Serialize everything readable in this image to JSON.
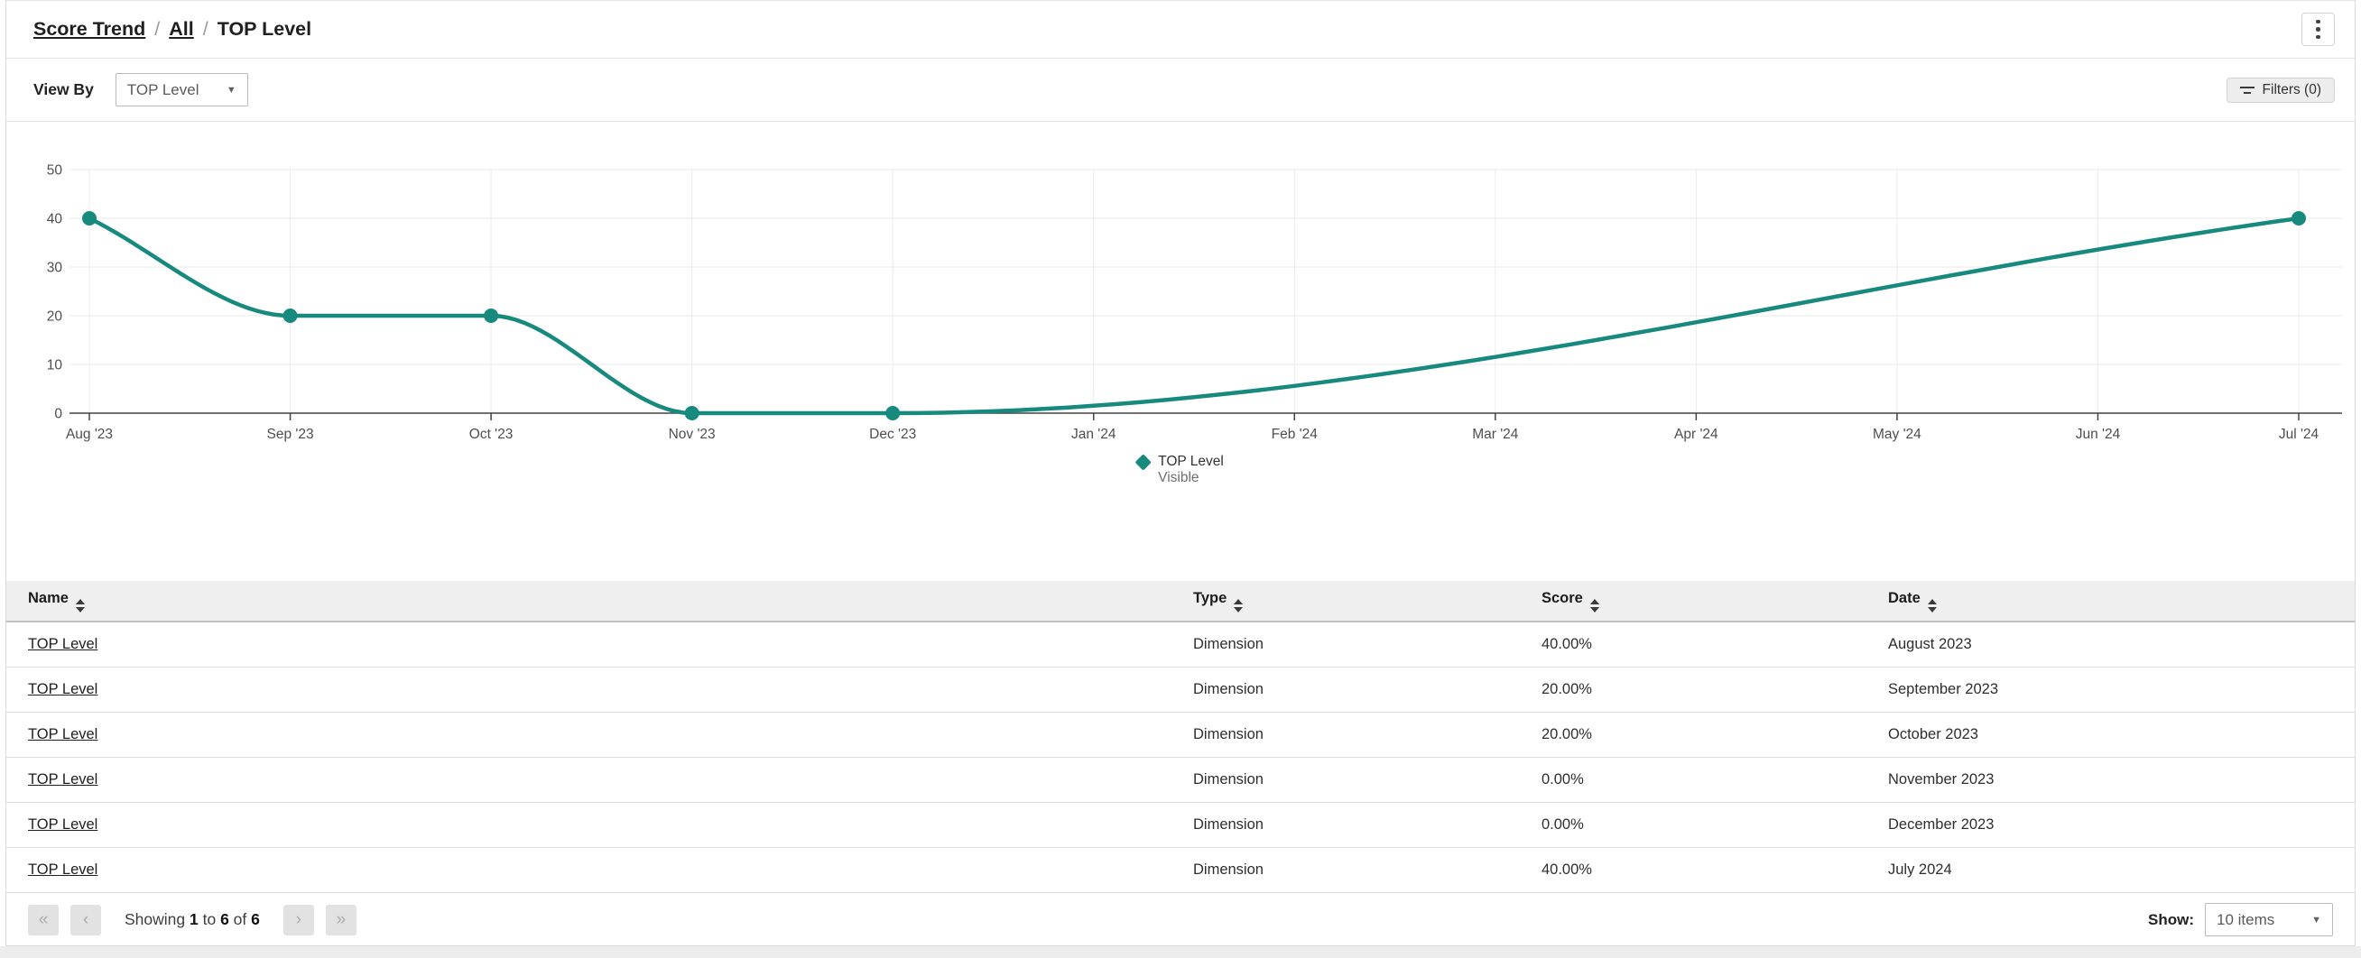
{
  "breadcrumb": {
    "separator": "/",
    "items": [
      {
        "label": "Score Trend",
        "link": true
      },
      {
        "label": "All",
        "link": true
      },
      {
        "label": "TOP Level",
        "link": false
      }
    ]
  },
  "toolbar": {
    "view_by_label": "View By",
    "view_by_value": "TOP Level",
    "filters_label": "Filters (0)"
  },
  "menu": {
    "kebab_icon": "more-options-vertical"
  },
  "chart_data": {
    "type": "line",
    "x": [
      "Aug '23",
      "Sep '23",
      "Oct '23",
      "Nov '23",
      "Dec '23",
      "Jan '24",
      "Feb '24",
      "Mar '24",
      "Apr '24",
      "May '24",
      "Jun '24",
      "Jul '24"
    ],
    "yticks": [
      0,
      10,
      20,
      30,
      40,
      50
    ],
    "ylim": [
      0,
      50
    ],
    "grid": true,
    "interpolation": "monotone",
    "series": [
      {
        "name": "TOP Level Visible",
        "color": "#17897d",
        "points": [
          {
            "x": "Aug '23",
            "y": 40
          },
          {
            "x": "Sep '23",
            "y": 20
          },
          {
            "x": "Oct '23",
            "y": 20
          },
          {
            "x": "Nov '23",
            "y": 0
          },
          {
            "x": "Dec '23",
            "y": 0
          },
          {
            "x": "Jul '24",
            "y": 40
          }
        ]
      }
    ],
    "legend": {
      "position": "bottom",
      "label": "TOP Level",
      "sublabel": "Visible"
    }
  },
  "table": {
    "columns": [
      {
        "label": "Name",
        "sortable": true
      },
      {
        "label": "Type",
        "sortable": true
      },
      {
        "label": "Score",
        "sortable": true
      },
      {
        "label": "Date",
        "sortable": true
      }
    ],
    "rows": [
      {
        "name": "TOP Level",
        "type": "Dimension",
        "score": "40.00%",
        "date": "August 2023"
      },
      {
        "name": "TOP Level",
        "type": "Dimension",
        "score": "20.00%",
        "date": "September 2023"
      },
      {
        "name": "TOP Level",
        "type": "Dimension",
        "score": "20.00%",
        "date": "October 2023"
      },
      {
        "name": "TOP Level",
        "type": "Dimension",
        "score": "0.00%",
        "date": "November 2023"
      },
      {
        "name": "TOP Level",
        "type": "Dimension",
        "score": "0.00%",
        "date": "December 2023"
      },
      {
        "name": "TOP Level",
        "type": "Dimension",
        "score": "40.00%",
        "date": "July 2024"
      }
    ]
  },
  "pagination": {
    "first_glyph": "«",
    "prev_glyph": "‹",
    "next_glyph": "›",
    "last_glyph": "»",
    "word_showing": "Showing ",
    "from": "1",
    "word_to": " to ",
    "to": "6",
    "word_of": " of ",
    "total": "6",
    "show_label": "Show:",
    "show_value": "10 items"
  },
  "colors": {
    "accent": "#17897d",
    "grid": "#e9e9e9",
    "axis": "#424242",
    "header_bg": "#efefef"
  }
}
